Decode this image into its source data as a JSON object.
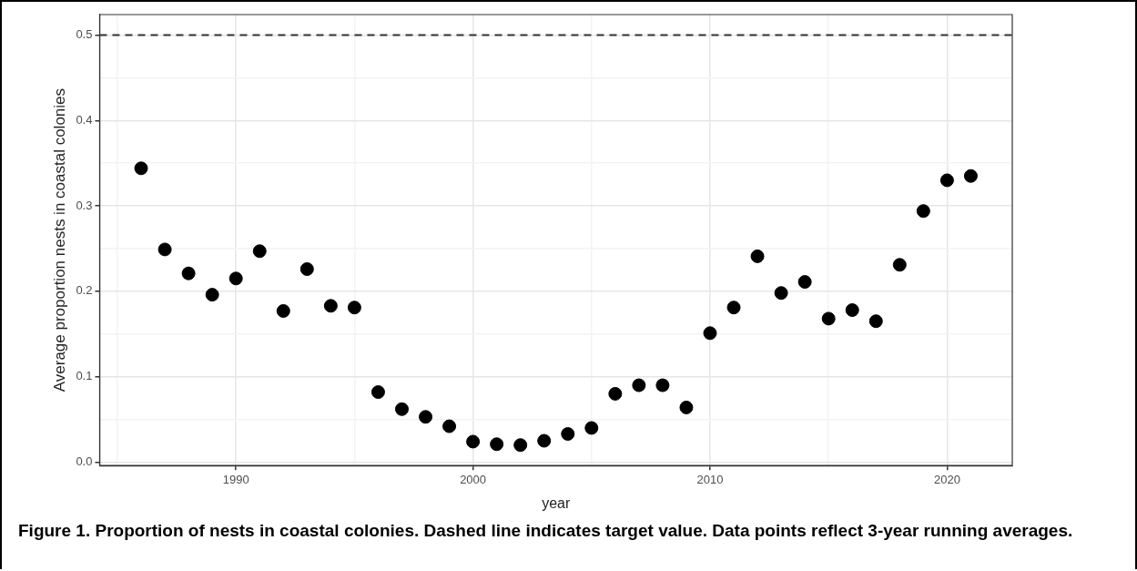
{
  "chart_data": {
    "type": "scatter",
    "x": [
      1986,
      1987,
      1988,
      1989,
      1990,
      1991,
      1992,
      1993,
      1994,
      1995,
      1996,
      1997,
      1998,
      1999,
      2000,
      2001,
      2002,
      2003,
      2004,
      2005,
      2006,
      2007,
      2008,
      2009,
      2010,
      2011,
      2012,
      2013,
      2014,
      2015,
      2016,
      2017,
      2018,
      2019,
      2020,
      2021
    ],
    "values": [
      0.344,
      0.249,
      0.221,
      0.196,
      0.215,
      0.247,
      0.177,
      0.226,
      0.183,
      0.181,
      0.082,
      0.062,
      0.053,
      0.042,
      0.024,
      0.021,
      0.02,
      0.025,
      0.033,
      0.04,
      0.08,
      0.09,
      0.09,
      0.064,
      0.151,
      0.181,
      0.241,
      0.198,
      0.211,
      0.168,
      0.178,
      0.165,
      0.231,
      0.294,
      0.33,
      0.335
    ],
    "color": "#000000",
    "marker": "circle",
    "xlabel": "year",
    "ylabel": "Average proportion nests in coastal colonies",
    "xlim": [
      1984.25,
      2022.75
    ],
    "ylim": [
      -0.004,
      0.524
    ],
    "xticks": [
      {
        "value": 1985,
        "label": null
      },
      1990,
      {
        "value": 1995,
        "label": null
      },
      2000,
      {
        "value": 2005,
        "label": null
      },
      2010,
      {
        "value": 2015,
        "label": null
      },
      2020
    ],
    "yticks": [
      {
        "value": 0,
        "label": "0.0"
      },
      {
        "value": 0.05,
        "label": null
      },
      0.1,
      {
        "value": 0.15,
        "label": null
      },
      0.2,
      {
        "value": 0.25,
        "label": null
      },
      0.3,
      {
        "value": 0.35,
        "label": null
      },
      0.4,
      {
        "value": 0.45,
        "label": null
      },
      0.5
    ],
    "grid": true,
    "legend": false,
    "ref_lines": [
      {
        "axis": "y",
        "value": 0.5,
        "color": "#333333",
        "line_style": "dashed"
      }
    ],
    "annotations": [
      "Figure 1. Proportion of nests in coastal colonies. Dashed line indicates target value. Data points reflect 3-year running averages."
    ]
  }
}
